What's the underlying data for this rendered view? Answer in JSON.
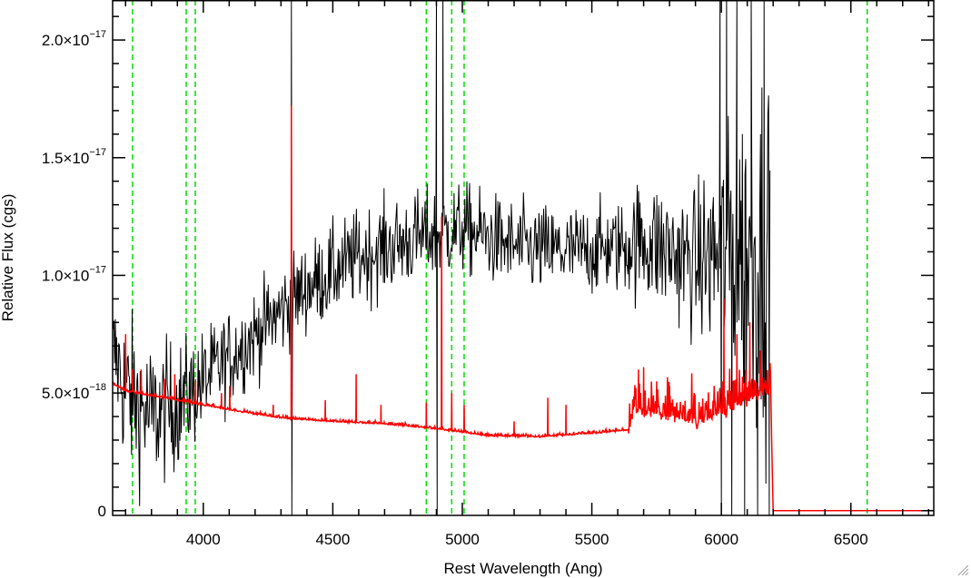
{
  "chart_data": {
    "type": "line",
    "xlabel": "Rest Wavelength (Ang)",
    "ylabel": "Relative Flux (cgs)",
    "xlim": [
      3650,
      6820
    ],
    "ylim": [
      -2e-19,
      2.17e-17
    ],
    "x_ticks": [
      {
        "value": 4000,
        "label": "4000"
      },
      {
        "value": 4500,
        "label": "4500"
      },
      {
        "value": 5000,
        "label": "5000"
      },
      {
        "value": 5500,
        "label": "5500"
      },
      {
        "value": 6000,
        "label": "6000"
      },
      {
        "value": 6500,
        "label": "6500"
      }
    ],
    "y_ticks": [
      {
        "value": 0,
        "mantissa": "0",
        "exponent": ""
      },
      {
        "value": 5e-18,
        "mantissa": "5.0×10",
        "exponent": "−18"
      },
      {
        "value": 1e-17,
        "mantissa": "1.0×10",
        "exponent": "−17"
      },
      {
        "value": 1.5e-17,
        "mantissa": "1.5×10",
        "exponent": "−17"
      },
      {
        "value": 2e-17,
        "mantissa": "2.0×10",
        "exponent": "−17"
      }
    ],
    "x_minor_step": 100,
    "y_minor_step": 1e-18,
    "reference_lines": [
      3727,
      3934,
      3969,
      4861,
      4959,
      5007,
      6563
    ],
    "series": [
      {
        "role": "observed",
        "color": "#000000",
        "noise_profile": [
          [
            3650,
            7e-18,
            3e-18
          ],
          [
            3700,
            5e-18,
            4.5e-18
          ],
          [
            3800,
            4e-18,
            4e-18
          ],
          [
            3900,
            4.5e-18,
            3.5e-18
          ],
          [
            4000,
            5.5e-18,
            2.8e-18
          ],
          [
            4200,
            7.5e-18,
            2.5e-18
          ],
          [
            4400,
            9.5e-18,
            2.5e-18
          ],
          [
            4600,
            1.08e-17,
            2.6e-18
          ],
          [
            4800,
            1.15e-17,
            2.6e-18
          ],
          [
            5000,
            1.2e-17,
            2.5e-18
          ],
          [
            5200,
            1.12e-17,
            2.5e-18
          ],
          [
            5400,
            1.1e-17,
            2.5e-18
          ],
          [
            5600,
            1.12e-17,
            2.5e-18
          ],
          [
            5700,
            1.15e-17,
            3.5e-18
          ],
          [
            5900,
            1.05e-17,
            4e-18
          ],
          [
            6000,
            1.1e-17,
            6e-18
          ],
          [
            6100,
            1.1e-17,
            9e-18
          ],
          [
            6180,
            1.1e-17,
            1.1e-17
          ]
        ],
        "spikes": [
          {
            "x": 4340,
            "y": 2.2e-17
          },
          {
            "x": 4342,
            "y": -2e-19
          },
          {
            "x": 4900,
            "y": 2.2e-17
          },
          {
            "x": 4903,
            "y": -2e-19
          },
          {
            "x": 4925,
            "y": 2.2e-17
          },
          {
            "x": 5995,
            "y": 2.2e-17
          },
          {
            "x": 6000,
            "y": -2e-19
          },
          {
            "x": 6020,
            "y": 2.2e-17
          },
          {
            "x": 6040,
            "y": -2e-19
          },
          {
            "x": 6060,
            "y": 2.2e-17
          },
          {
            "x": 6090,
            "y": -2e-19
          },
          {
            "x": 6115,
            "y": 2.2e-17
          },
          {
            "x": 6140,
            "y": -2e-19
          },
          {
            "x": 6165,
            "y": 2.2e-17
          },
          {
            "x": 6185,
            "y": -2e-19
          }
        ],
        "x_end": 6190
      },
      {
        "role": "model",
        "color": "#ff0000",
        "baseline": [
          [
            3650,
            5.4e-18
          ],
          [
            3700,
            5.1e-18
          ],
          [
            3800,
            4.9e-18
          ],
          [
            3950,
            4.6e-18
          ],
          [
            4100,
            4.3e-18
          ],
          [
            4300,
            3.95e-18
          ],
          [
            4500,
            3.8e-18
          ],
          [
            4700,
            3.7e-18
          ],
          [
            4850,
            3.55e-18
          ],
          [
            5000,
            3.35e-18
          ],
          [
            5100,
            3.2e-18
          ],
          [
            5300,
            3.15e-18
          ],
          [
            5500,
            3.3e-18
          ],
          [
            5640,
            3.45e-18
          ],
          [
            5660,
            4.4e-18
          ],
          [
            5900,
            3.9e-18
          ],
          [
            6000,
            4.3e-18
          ],
          [
            6100,
            4.8e-18
          ],
          [
            6190,
            5.3e-18
          ],
          [
            6200,
            0
          ],
          [
            6820,
            0
          ]
        ],
        "spikes": [
          {
            "x": 3700,
            "y": 7.5e-18
          },
          {
            "x": 3727,
            "y": 6e-18
          },
          {
            "x": 3760,
            "y": 6e-18
          },
          {
            "x": 3850,
            "y": 5.6e-18
          },
          {
            "x": 3890,
            "y": 5.8e-18
          },
          {
            "x": 3970,
            "y": 5.5e-18
          },
          {
            "x": 4070,
            "y": 5e-18
          },
          {
            "x": 4102,
            "y": 5.3e-18
          },
          {
            "x": 4270,
            "y": 4.5e-18
          },
          {
            "x": 4340,
            "y": 1.72e-17
          },
          {
            "x": 4471,
            "y": 4.7e-18
          },
          {
            "x": 4590,
            "y": 5.8e-18
          },
          {
            "x": 4686,
            "y": 4.5e-18
          },
          {
            "x": 4861,
            "y": 4.6e-18
          },
          {
            "x": 4920,
            "y": 1.25e-17
          },
          {
            "x": 4959,
            "y": 5e-18
          },
          {
            "x": 5007,
            "y": 4.5e-18
          },
          {
            "x": 5200,
            "y": 3.8e-18
          },
          {
            "x": 5330,
            "y": 4.8e-18
          },
          {
            "x": 5400,
            "y": 4.5e-18
          },
          {
            "x": 5680,
            "y": 6e-18
          },
          {
            "x": 5700,
            "y": 6.1e-18
          },
          {
            "x": 5750,
            "y": 5.5e-18
          },
          {
            "x": 5800,
            "y": 5.3e-18
          },
          {
            "x": 5895,
            "y": 5e-18
          },
          {
            "x": 6010,
            "y": 9e-18
          },
          {
            "x": 6060,
            "y": 7.5e-18
          },
          {
            "x": 6110,
            "y": 8e-18
          },
          {
            "x": 6150,
            "y": 6.8e-18
          }
        ]
      }
    ]
  }
}
